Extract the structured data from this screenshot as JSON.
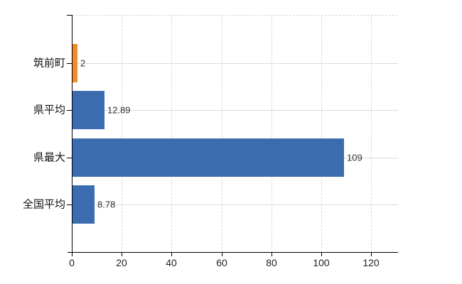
{
  "chart_data": {
    "type": "bar",
    "orientation": "horizontal",
    "title": "",
    "xlabel": "",
    "ylabel": "",
    "categories": [
      "筑前町",
      "県平均",
      "県最大",
      "全国平均"
    ],
    "values": [
      2,
      12.89,
      109,
      8.78
    ],
    "value_labels": [
      "2",
      "12.89",
      "109",
      "8.78"
    ],
    "bar_colors": [
      "#ef8c2a",
      "#3c6cb0",
      "#3c6cb0",
      "#3c6cb0"
    ],
    "x_ticks": [
      0,
      20,
      40,
      60,
      80,
      100,
      120
    ],
    "x_tick_labels": [
      "0",
      "20",
      "40",
      "60",
      "80",
      "100",
      "120"
    ],
    "xlim": [
      0,
      130.8
    ],
    "grid": {
      "vertical": "dashed",
      "horizontal_at_category_centers": "solid",
      "top_border": "dashed",
      "color": "#d9d9d9"
    },
    "legend": "none",
    "colors": {
      "axis": "#000000",
      "text": "#333333",
      "background": "#ffffff",
      "highlight_bar": "#ef8c2a",
      "default_bar": "#3c6cb0"
    }
  }
}
